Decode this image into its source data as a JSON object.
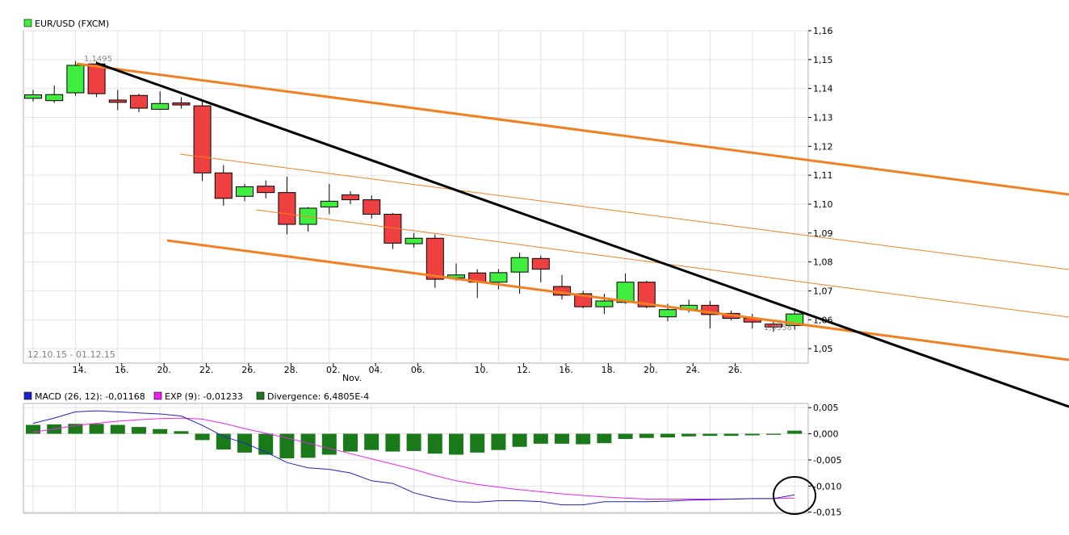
{
  "chart_data": [
    {
      "type": "candlestick",
      "title": "",
      "legend": [
        {
          "label": "EUR/USD (FXCM)",
          "color": "#40ee40"
        }
      ],
      "date_range": "12.10.15 - 01.12.15",
      "ylim": [
        1.045,
        1.16
      ],
      "y_ticks": [
        "1,16",
        "1,15",
        "1,14",
        "1,13",
        "1,12",
        "1,11",
        "1,10",
        "1,09",
        "1,08",
        "1,07",
        "1,06",
        "1,05"
      ],
      "x_ticks": [
        "14.",
        "16.",
        "20.",
        "22.",
        "26.",
        "28.",
        "02.",
        "04.",
        "06.",
        "10.",
        "12.",
        "16.",
        "18.",
        "20.",
        "24.",
        "26."
      ],
      "x_month_label": "Nov.",
      "annotations": [
        "1,1495",
        "1,0558"
      ],
      "up_color": "#40ee40",
      "down_color": "#ee4040",
      "candles": [
        {
          "date": "12.10",
          "o": 1.1366,
          "h": 1.1395,
          "l": 1.1355,
          "c": 1.1378
        },
        {
          "date": "13.10",
          "o": 1.1358,
          "h": 1.141,
          "l": 1.135,
          "c": 1.1379
        },
        {
          "date": "14.10",
          "o": 1.1385,
          "h": 1.1495,
          "l": 1.1375,
          "c": 1.148
        },
        {
          "date": "15.10",
          "o": 1.1485,
          "h": 1.1495,
          "l": 1.137,
          "c": 1.1382
        },
        {
          "date": "16.10",
          "o": 1.136,
          "h": 1.1395,
          "l": 1.1325,
          "c": 1.1352
        },
        {
          "date": "19.10",
          "o": 1.1376,
          "h": 1.1382,
          "l": 1.1318,
          "c": 1.1332
        },
        {
          "date": "20.10",
          "o": 1.1328,
          "h": 1.139,
          "l": 1.1325,
          "c": 1.1348
        },
        {
          "date": "21.10",
          "o": 1.135,
          "h": 1.137,
          "l": 1.133,
          "c": 1.1343
        },
        {
          "date": "22.10",
          "o": 1.134,
          "h": 1.1355,
          "l": 1.108,
          "c": 1.1108
        },
        {
          "date": "23.10",
          "o": 1.1108,
          "h": 1.1135,
          "l": 1.0995,
          "c": 1.102
        },
        {
          "date": "26.10",
          "o": 1.1027,
          "h": 1.107,
          "l": 1.101,
          "c": 1.106
        },
        {
          "date": "27.10",
          "o": 1.1062,
          "h": 1.1082,
          "l": 1.102,
          "c": 1.104
        },
        {
          "date": "28.10",
          "o": 1.104,
          "h": 1.1095,
          "l": 1.0895,
          "c": 1.093
        },
        {
          "date": "29.10",
          "o": 1.093,
          "h": 1.099,
          "l": 1.0905,
          "c": 1.0986
        },
        {
          "date": "30.10",
          "o": 1.099,
          "h": 1.107,
          "l": 1.0965,
          "c": 1.101
        },
        {
          "date": "02.11",
          "o": 1.1032,
          "h": 1.1045,
          "l": 1.1,
          "c": 1.1015
        },
        {
          "date": "03.11",
          "o": 1.1015,
          "h": 1.103,
          "l": 1.095,
          "c": 1.0965
        },
        {
          "date": "04.11",
          "o": 1.0965,
          "h": 1.097,
          "l": 1.0845,
          "c": 1.0865
        },
        {
          "date": "05.11",
          "o": 1.0863,
          "h": 1.09,
          "l": 1.085,
          "c": 1.0882
        },
        {
          "date": "06.11",
          "o": 1.0882,
          "h": 1.0895,
          "l": 1.071,
          "c": 1.074
        },
        {
          "date": "09.11",
          "o": 1.0745,
          "h": 1.0795,
          "l": 1.0735,
          "c": 1.0755
        },
        {
          "date": "10.11",
          "o": 1.0762,
          "h": 1.0775,
          "l": 1.0675,
          "c": 1.073
        },
        {
          "date": "11.11",
          "o": 1.073,
          "h": 1.0775,
          "l": 1.0705,
          "c": 1.0763
        },
        {
          "date": "12.11",
          "o": 1.0765,
          "h": 1.0832,
          "l": 1.069,
          "c": 1.0815
        },
        {
          "date": "13.11",
          "o": 1.0812,
          "h": 1.0822,
          "l": 1.073,
          "c": 1.0775
        },
        {
          "date": "16.11",
          "o": 1.0715,
          "h": 1.0755,
          "l": 1.067,
          "c": 1.0685
        },
        {
          "date": "17.11",
          "o": 1.069,
          "h": 1.07,
          "l": 1.064,
          "c": 1.0645
        },
        {
          "date": "18.11",
          "o": 1.0645,
          "h": 1.069,
          "l": 1.062,
          "c": 1.0665
        },
        {
          "date": "19.11",
          "o": 1.066,
          "h": 1.076,
          "l": 1.0655,
          "c": 1.073
        },
        {
          "date": "20.11",
          "o": 1.073,
          "h": 1.0735,
          "l": 1.064,
          "c": 1.0645
        },
        {
          "date": "23.11",
          "o": 1.061,
          "h": 1.0655,
          "l": 1.0595,
          "c": 1.0635
        },
        {
          "date": "24.11",
          "o": 1.0635,
          "h": 1.067,
          "l": 1.0625,
          "c": 1.065
        },
        {
          "date": "25.11",
          "o": 1.065,
          "h": 1.0665,
          "l": 1.057,
          "c": 1.0618
        },
        {
          "date": "26.11",
          "o": 1.0622,
          "h": 1.0632,
          "l": 1.0598,
          "c": 1.0605
        },
        {
          "date": "27.11",
          "o": 1.0605,
          "h": 1.062,
          "l": 1.057,
          "c": 1.0592
        },
        {
          "date": "30.11",
          "o": 1.0585,
          "h": 1.0595,
          "l": 1.0558,
          "c": 1.0575
        },
        {
          "date": "01.12",
          "o": 1.058,
          "h": 1.064,
          "l": 1.0565,
          "c": 1.062
        }
      ]
    },
    {
      "type": "bar+line",
      "legend": [
        {
          "label": "MACD (26, 12): -0,01168",
          "color": "#2020cc"
        },
        {
          "label": "EXP (9): -0,01233",
          "color": "#ee20ee"
        },
        {
          "label": "Divergence: 6,4805E-4",
          "color": "#1a7a1a"
        }
      ],
      "ylim": [
        -0.0152,
        0.0058
      ],
      "y_ticks": [
        "0,005",
        "0,000",
        "-0,005",
        "-0,010",
        "-0,015"
      ],
      "series": [
        {
          "name": "Divergence",
          "type": "bar",
          "color": "#1a7a1a",
          "values": [
            0.0017,
            0.0018,
            0.0019,
            0.0019,
            0.0017,
            0.0013,
            0.0009,
            0.0005,
            -0.0012,
            -0.003,
            -0.0036,
            -0.004,
            -0.0047,
            -0.0046,
            -0.004,
            -0.0034,
            -0.0031,
            -0.0034,
            -0.0033,
            -0.0038,
            -0.004,
            -0.0036,
            -0.0031,
            -0.0025,
            -0.0019,
            -0.0019,
            -0.002,
            -0.0018,
            -0.001,
            -0.0008,
            -0.0007,
            -0.0005,
            -0.0004,
            -0.0004,
            -0.0003,
            -0.0002,
            0.0006
          ]
        },
        {
          "name": "MACD",
          "type": "line",
          "color": "#2020cc",
          "values": [
            0.002,
            0.003,
            0.0042,
            0.0044,
            0.0042,
            0.004,
            0.0038,
            0.0034,
            0.0016,
            -0.0005,
            -0.0018,
            -0.0035,
            -0.0055,
            -0.0065,
            -0.0068,
            -0.0075,
            -0.009,
            -0.0095,
            -0.0113,
            -0.0123,
            -0.013,
            -0.0131,
            -0.0128,
            -0.0128,
            -0.013,
            -0.0136,
            -0.0136,
            -0.013,
            -0.013,
            -0.013,
            -0.0129,
            -0.0127,
            -0.0126,
            -0.0125,
            -0.0124,
            -0.0124,
            -0.0117
          ]
        },
        {
          "name": "EXP",
          "type": "line",
          "color": "#ee20ee",
          "values": [
            0.0003,
            0.0009,
            0.0016,
            0.002,
            0.0024,
            0.0027,
            0.0029,
            0.003,
            0.0028,
            0.002,
            0.001,
            0.0001,
            -0.0008,
            -0.0018,
            -0.0028,
            -0.0038,
            -0.0048,
            -0.0058,
            -0.0068,
            -0.008,
            -0.009,
            -0.0097,
            -0.0102,
            -0.0107,
            -0.0111,
            -0.0115,
            -0.0118,
            -0.0121,
            -0.0123,
            -0.0125,
            -0.0125,
            -0.0125,
            -0.0125,
            -0.0125,
            -0.0124,
            -0.0124,
            -0.0123
          ]
        }
      ]
    }
  ],
  "overlays": {
    "orange_color": "#f08020",
    "black_color": "#000000"
  }
}
